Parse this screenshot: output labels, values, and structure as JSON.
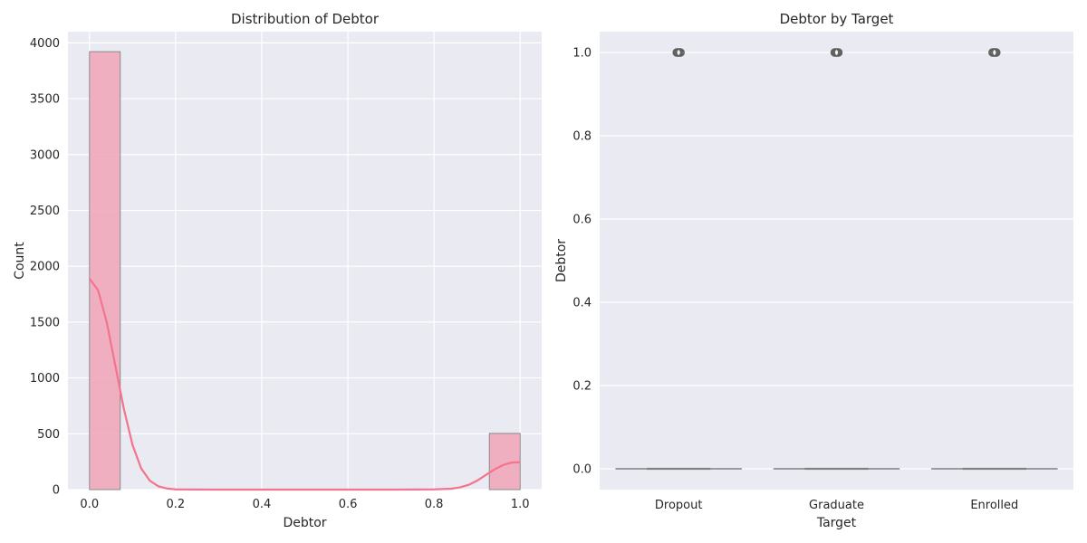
{
  "chart_data": [
    {
      "type": "bar",
      "subtype": "histogram_with_kde",
      "title": "Distribution of Debtor",
      "xlabel": "Debtor",
      "ylabel": "Count",
      "xlim": [
        -0.05,
        1.05
      ],
      "ylim": [
        0,
        4100
      ],
      "xticks": [
        "0.0",
        "0.2",
        "0.4",
        "0.6",
        "0.8",
        "1.0"
      ],
      "yticks": [
        "0",
        "500",
        "1000",
        "1500",
        "2000",
        "2500",
        "3000",
        "3500",
        "4000"
      ],
      "bins": [
        {
          "x0": 0.0,
          "x1": 0.0714,
          "count": 3921
        },
        {
          "x0": 0.9286,
          "x1": 1.0,
          "count": 503
        }
      ],
      "kde": {
        "x": [
          0.0,
          0.02,
          0.04,
          0.06,
          0.08,
          0.1,
          0.12,
          0.14,
          0.16,
          0.18,
          0.2,
          0.3,
          0.5,
          0.7,
          0.8,
          0.84,
          0.86,
          0.88,
          0.9,
          0.92,
          0.94,
          0.96,
          0.98,
          1.0
        ],
        "y": [
          1890,
          1785,
          1500,
          1110,
          720,
          400,
          190,
          80,
          30,
          10,
          2,
          0,
          0,
          0,
          2,
          8,
          20,
          42,
          80,
          130,
          180,
          220,
          242,
          245
        ]
      },
      "grid": true,
      "bar_color": "#f0a9bb",
      "line_color": "#f3748c"
    },
    {
      "type": "boxplot",
      "title": "Debtor by Target",
      "xlabel": "Target",
      "ylabel": "Debtor",
      "categories": [
        "Dropout",
        "Graduate",
        "Enrolled"
      ],
      "ylim": [
        -0.05,
        1.05
      ],
      "yticks": [
        "0.0",
        "0.2",
        "0.4",
        "0.6",
        "0.8",
        "1.0"
      ],
      "boxes": [
        {
          "category": "Dropout",
          "q1": 0,
          "median": 0,
          "q3": 0,
          "whisker_low": 0,
          "whisker_high": 0,
          "outliers": [
            1.0
          ]
        },
        {
          "category": "Graduate",
          "q1": 0,
          "median": 0,
          "q3": 0,
          "whisker_low": 0,
          "whisker_high": 0,
          "outliers": [
            1.0
          ]
        },
        {
          "category": "Enrolled",
          "q1": 0,
          "median": 0,
          "q3": 0,
          "whisker_low": 0,
          "whisker_high": 0,
          "outliers": [
            1.0
          ]
        }
      ],
      "grid": true,
      "line_color": "#808080"
    }
  ]
}
